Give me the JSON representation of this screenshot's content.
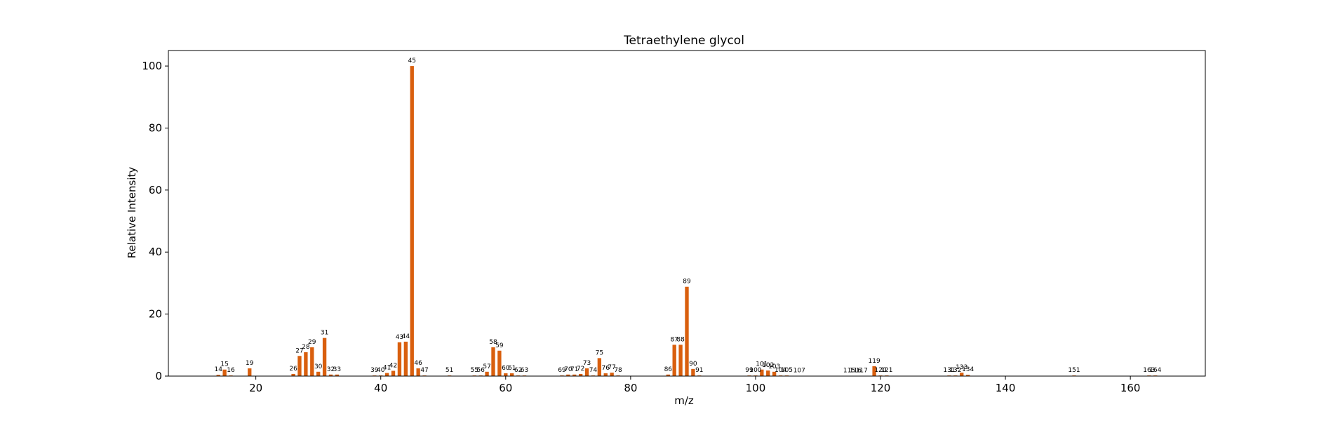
{
  "chart_data": {
    "type": "bar",
    "title": "Tetraethylene glycol",
    "xlabel": "m/z",
    "ylabel": "Relative Intensity",
    "xlim": [
      6,
      172
    ],
    "ylim": [
      0,
      105
    ],
    "xticks": [
      20,
      40,
      60,
      80,
      100,
      120,
      140,
      160
    ],
    "yticks": [
      0,
      20,
      40,
      60,
      80,
      100
    ],
    "bar_color": "#D95F0E",
    "grid": false,
    "legend": "none",
    "peaks": [
      {
        "mz": 14,
        "intensity": 0.4
      },
      {
        "mz": 15,
        "intensity": 2.1
      },
      {
        "mz": 16,
        "intensity": 0.2
      },
      {
        "mz": 19,
        "intensity": 2.5
      },
      {
        "mz": 26,
        "intensity": 0.7
      },
      {
        "mz": 27,
        "intensity": 6.5
      },
      {
        "mz": 28,
        "intensity": 7.7
      },
      {
        "mz": 29,
        "intensity": 9.3
      },
      {
        "mz": 30,
        "intensity": 1.4
      },
      {
        "mz": 31,
        "intensity": 12.3
      },
      {
        "mz": 32,
        "intensity": 0.5
      },
      {
        "mz": 33,
        "intensity": 0.5
      },
      {
        "mz": 39,
        "intensity": 0.2
      },
      {
        "mz": 40,
        "intensity": 0.2
      },
      {
        "mz": 41,
        "intensity": 1.0
      },
      {
        "mz": 42,
        "intensity": 1.7
      },
      {
        "mz": 43,
        "intensity": 10.9
      },
      {
        "mz": 44,
        "intensity": 11.1
      },
      {
        "mz": 45,
        "intensity": 100
      },
      {
        "mz": 46,
        "intensity": 2.5
      },
      {
        "mz": 47,
        "intensity": 0.2
      },
      {
        "mz": 51,
        "intensity": 0.2
      },
      {
        "mz": 55,
        "intensity": 0.2
      },
      {
        "mz": 56,
        "intensity": 0.2
      },
      {
        "mz": 57,
        "intensity": 1.4
      },
      {
        "mz": 58,
        "intensity": 9.3
      },
      {
        "mz": 59,
        "intensity": 8.2
      },
      {
        "mz": 60,
        "intensity": 0.9
      },
      {
        "mz": 61,
        "intensity": 0.9
      },
      {
        "mz": 62,
        "intensity": 0.2
      },
      {
        "mz": 63,
        "intensity": 0.2
      },
      {
        "mz": 69,
        "intensity": 0.2
      },
      {
        "mz": 70,
        "intensity": 0.5
      },
      {
        "mz": 71,
        "intensity": 0.5
      },
      {
        "mz": 72,
        "intensity": 0.7
      },
      {
        "mz": 73,
        "intensity": 2.5
      },
      {
        "mz": 74,
        "intensity": 0.2
      },
      {
        "mz": 75,
        "intensity": 5.8
      },
      {
        "mz": 76,
        "intensity": 0.9
      },
      {
        "mz": 77,
        "intensity": 1.1
      },
      {
        "mz": 78,
        "intensity": 0.2
      },
      {
        "mz": 86,
        "intensity": 0.5
      },
      {
        "mz": 87,
        "intensity": 10.1
      },
      {
        "mz": 88,
        "intensity": 10.1
      },
      {
        "mz": 89,
        "intensity": 28.8
      },
      {
        "mz": 90,
        "intensity": 2.3
      },
      {
        "mz": 91,
        "intensity": 0.2
      },
      {
        "mz": 99,
        "intensity": 0.2
      },
      {
        "mz": 100,
        "intensity": 0.2
      },
      {
        "mz": 101,
        "intensity": 2.1
      },
      {
        "mz": 102,
        "intensity": 1.8
      },
      {
        "mz": 103,
        "intensity": 1.4
      },
      {
        "mz": 104,
        "intensity": 0.2
      },
      {
        "mz": 105,
        "intensity": 0.2
      },
      {
        "mz": 107,
        "intensity": 0.1
      },
      {
        "mz": 115,
        "intensity": 0.1
      },
      {
        "mz": 116,
        "intensity": 0.1
      },
      {
        "mz": 117,
        "intensity": 0.1
      },
      {
        "mz": 119,
        "intensity": 3.2
      },
      {
        "mz": 120,
        "intensity": 0.2
      },
      {
        "mz": 121,
        "intensity": 0.2
      },
      {
        "mz": 131,
        "intensity": 0.2
      },
      {
        "mz": 132,
        "intensity": 0.2
      },
      {
        "mz": 133,
        "intensity": 1.1
      },
      {
        "mz": 134,
        "intensity": 0.4
      },
      {
        "mz": 151,
        "intensity": 0.2
      },
      {
        "mz": 163,
        "intensity": 0.2
      },
      {
        "mz": 164,
        "intensity": 0.2
      }
    ]
  }
}
